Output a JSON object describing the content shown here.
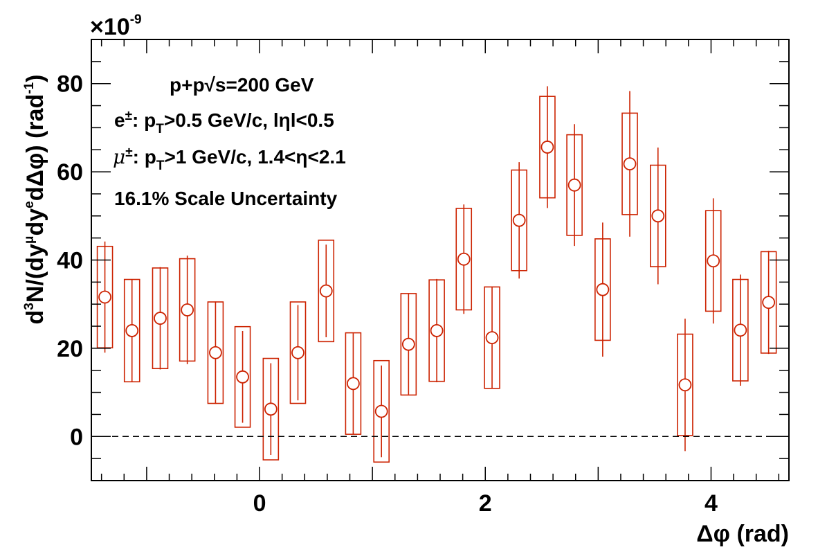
{
  "chart_data": {
    "type": "scatter",
    "multiplier_label": "×10",
    "multiplier_exponent": "-9",
    "ylabel": {
      "parts": [
        {
          "t": "d"
        },
        {
          "t": "3",
          "sup": true
        },
        {
          "t": "N/(dy"
        },
        {
          "t": "μ",
          "sup": true
        },
        {
          "t": "dy"
        },
        {
          "t": "e",
          "sup": true
        },
        {
          "t": "dΔφ) (rad"
        },
        {
          "t": "-1",
          "sup": true
        },
        {
          "t": ")"
        }
      ]
    },
    "xlabel": "Δφ (rad)",
    "xlim": [
      -1.49,
      4.69
    ],
    "ylim": [
      -10,
      90
    ],
    "x_ticks": [
      0,
      2,
      4
    ],
    "x_tick_labels": [
      "0",
      "2",
      "4"
    ],
    "y_ticks": [
      0,
      20,
      40,
      60,
      80
    ],
    "y_tick_labels": [
      "0",
      "20",
      "40",
      "60",
      "80"
    ],
    "reference_line_y": 0,
    "color": "#cc2200",
    "annotations": {
      "line1": "p+p√s=200 GeV",
      "line2_a": "e",
      "line2_a_sup": "±",
      "line2_b": ": p",
      "line2_b_sub": "T",
      "line2_c": ">0.5 GeV/c, lηl<0.5",
      "line3_mu": "μ",
      "line3_mu_sup": "±",
      "line3_b": ": p",
      "line3_b_sub": "T",
      "line3_c": ">1 GeV/c, 1.4<η<2.1",
      "line4": "16.1% Scale Uncertainty"
    },
    "points": [
      {
        "x": -1.37,
        "y": 31.6,
        "stat": 12.6,
        "sys": 11.5
      },
      {
        "x": -1.13,
        "y": 24.0,
        "stat": 11.6,
        "sys": 11.6
      },
      {
        "x": -0.88,
        "y": 26.8,
        "stat": 11.6,
        "sys": 11.4
      },
      {
        "x": -0.64,
        "y": 28.7,
        "stat": 12.3,
        "sys": 11.6
      },
      {
        "x": -0.39,
        "y": 19.0,
        "stat": 11.6,
        "sys": 11.5
      },
      {
        "x": -0.15,
        "y": 13.5,
        "stat": 10.4,
        "sys": 11.4
      },
      {
        "x": 0.1,
        "y": 6.2,
        "stat": 10.4,
        "sys": 11.5
      },
      {
        "x": 0.34,
        "y": 19.0,
        "stat": 10.8,
        "sys": 11.5
      },
      {
        "x": 0.59,
        "y": 33.0,
        "stat": 10.5,
        "sys": 11.5
      },
      {
        "x": 0.83,
        "y": 12.0,
        "stat": 11.4,
        "sys": 11.5
      },
      {
        "x": 1.08,
        "y": 5.7,
        "stat": 10.4,
        "sys": 11.5
      },
      {
        "x": 1.32,
        "y": 20.9,
        "stat": 11.4,
        "sys": 11.5
      },
      {
        "x": 1.57,
        "y": 24.0,
        "stat": 11.7,
        "sys": 11.5
      },
      {
        "x": 1.81,
        "y": 40.2,
        "stat": 12.4,
        "sys": 11.5
      },
      {
        "x": 2.06,
        "y": 22.4,
        "stat": 11.6,
        "sys": 11.5
      },
      {
        "x": 2.3,
        "y": 49.0,
        "stat": 13.2,
        "sys": 11.4
      },
      {
        "x": 2.55,
        "y": 65.6,
        "stat": 13.8,
        "sys": 11.5
      },
      {
        "x": 2.79,
        "y": 57.0,
        "stat": 13.8,
        "sys": 11.4
      },
      {
        "x": 3.04,
        "y": 33.3,
        "stat": 15.2,
        "sys": 11.5
      },
      {
        "x": 3.28,
        "y": 61.8,
        "stat": 16.5,
        "sys": 11.5
      },
      {
        "x": 3.53,
        "y": 50.0,
        "stat": 15.5,
        "sys": 11.5
      },
      {
        "x": 3.77,
        "y": 11.7,
        "stat": 15.0,
        "sys": 11.5
      },
      {
        "x": 4.02,
        "y": 39.8,
        "stat": 14.2,
        "sys": 11.4
      },
      {
        "x": 4.26,
        "y": 24.1,
        "stat": 12.6,
        "sys": 11.5
      },
      {
        "x": 4.51,
        "y": 30.4,
        "stat": 11.7,
        "sys": 11.5
      }
    ]
  }
}
